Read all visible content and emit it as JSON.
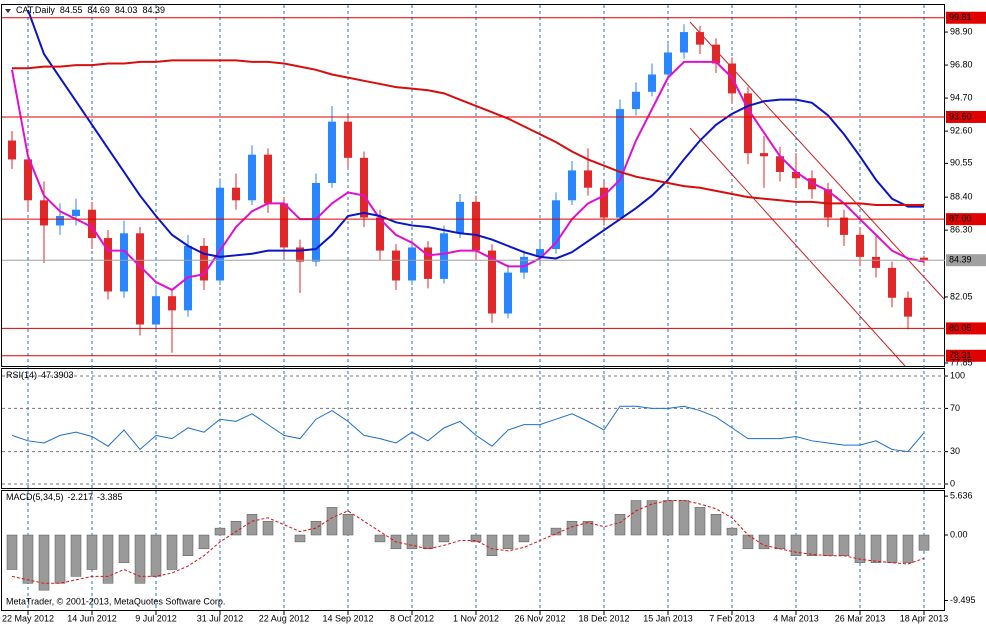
{
  "chart_data": [
    {
      "type": "candlestick",
      "title": "CAT,Daily",
      "categories": [
        null,
        "22 May 2012",
        null,
        null,
        null,
        "14 Jun 2012",
        null,
        null,
        null,
        "9 Jul 2012",
        null,
        null,
        null,
        "31 Jul 2012",
        null,
        null,
        null,
        "22 Aug 2012",
        null,
        null,
        null,
        "14 Sep 2012",
        null,
        null,
        null,
        "8 Oct 2012",
        null,
        null,
        null,
        "1 Nov 2012",
        null,
        null,
        null,
        "26 Nov 2012",
        null,
        null,
        null,
        "18 Dec 2012",
        null,
        null,
        null,
        "15 Jan 2013",
        null,
        null,
        null,
        "7 Feb 2013",
        null,
        null,
        null,
        "4 Mar 2013",
        null,
        null,
        null,
        "26 Mar 2013",
        null,
        null,
        null,
        "18 Apr 2013"
      ],
      "open": [
        92.0,
        90.8,
        88.2,
        86.6,
        87.2,
        87.6,
        85.8,
        82.4,
        86.1,
        80.3,
        82.1,
        81.2,
        85.3,
        83.1,
        89.0,
        88.2,
        91.1,
        88.0,
        85.2,
        84.3,
        89.3,
        93.2,
        90.9,
        87.1,
        85.0,
        83.1,
        85.2,
        83.2,
        86.1,
        88.1,
        85.0,
        81.0,
        83.6,
        84.6,
        85.1,
        88.2,
        90.1,
        89.0,
        87.1,
        94.0,
        95.1,
        96.2,
        97.6,
        98.9,
        98.1,
        96.9,
        95.0,
        91.2,
        91.0,
        90.0,
        89.6,
        88.9,
        87.1,
        86.0,
        84.6,
        83.9,
        82.0,
        84.55
      ],
      "high": [
        92.6,
        91.3,
        89.4,
        88.0,
        88.3,
        88.1,
        86.3,
        86.9,
        86.5,
        82.8,
        82.6,
        86.0,
        85.8,
        89.6,
        89.9,
        91.7,
        91.5,
        88.4,
        85.7,
        89.9,
        94.2,
        93.7,
        91.3,
        87.6,
        85.4,
        85.8,
        85.6,
        86.6,
        88.6,
        88.5,
        85.4,
        84.1,
        85.0,
        85.6,
        88.7,
        90.7,
        91.5,
        89.4,
        94.6,
        95.7,
        96.9,
        98.2,
        99.4,
        99.3,
        98.5,
        97.3,
        95.4,
        92.3,
        91.6,
        91.2,
        90.1,
        89.3,
        87.6,
        86.5,
        85.9,
        84.3,
        82.4,
        84.69
      ],
      "low": [
        90.2,
        87.5,
        84.2,
        86.0,
        86.6,
        85.1,
        81.9,
        82.0,
        79.6,
        79.9,
        78.5,
        80.8,
        82.5,
        82.8,
        87.6,
        87.9,
        87.4,
        84.6,
        82.3,
        84.0,
        89.0,
        90.3,
        86.5,
        84.4,
        82.5,
        82.8,
        82.6,
        82.9,
        85.8,
        84.4,
        80.4,
        80.7,
        83.2,
        84.2,
        84.8,
        87.9,
        88.5,
        86.6,
        86.9,
        93.6,
        94.8,
        95.9,
        97.2,
        97.5,
        96.3,
        94.4,
        90.5,
        89.0,
        89.4,
        89.0,
        88.3,
        86.5,
        85.3,
        84.0,
        83.3,
        81.4,
        80.0,
        84.03
      ],
      "close": [
        90.8,
        88.2,
        86.6,
        87.2,
        87.6,
        85.8,
        82.4,
        86.1,
        80.3,
        82.1,
        81.2,
        85.3,
        83.1,
        89.0,
        88.2,
        91.1,
        88.0,
        85.2,
        84.3,
        89.3,
        93.2,
        90.9,
        87.1,
        85.0,
        83.1,
        85.2,
        83.2,
        86.1,
        88.1,
        85.0,
        81.0,
        83.6,
        84.6,
        85.1,
        88.2,
        90.1,
        89.0,
        87.1,
        94.0,
        95.1,
        96.2,
        97.6,
        98.9,
        98.1,
        96.9,
        95.0,
        91.2,
        91.0,
        90.0,
        89.6,
        88.9,
        87.1,
        86.0,
        84.6,
        83.9,
        82.0,
        80.8,
        84.39
      ],
      "up_color": "#2a86ff",
      "down_color": "#e0282a",
      "lines": [
        {
          "color": "#e010d0",
          "values": [
            96.5,
            91,
            88.5,
            87.5,
            87,
            86.5,
            85,
            85,
            84,
            83,
            82.5,
            83.3,
            83.5,
            85,
            86.5,
            87.5,
            88,
            88,
            87,
            87,
            88,
            88.7,
            88.5,
            87,
            86,
            85.5,
            84.7,
            84.8,
            85,
            85,
            84.5,
            84,
            84,
            84.5,
            85.5,
            87,
            88,
            88.5,
            89.5,
            92,
            94,
            96,
            97,
            97,
            97,
            96,
            94,
            92.5,
            91,
            90,
            89.3,
            88.8,
            88,
            87,
            86,
            85,
            84.5,
            84.3
          ]
        },
        {
          "color": "#0a14c8",
          "values": [
            null,
            100.3,
            97.5,
            96,
            94.5,
            93,
            91.5,
            90,
            88.5,
            87.2,
            86,
            85.3,
            84.8,
            84.6,
            84.7,
            84.8,
            85,
            85,
            85,
            85.1,
            86,
            87.2,
            87.4,
            87.2,
            86.8,
            86.6,
            86.5,
            86.3,
            86.1,
            86,
            85.7,
            85.3,
            84.9,
            84.6,
            84.5,
            84.9,
            85.6,
            86.3,
            87,
            87.7,
            88.5,
            89.5,
            90.8,
            92,
            93,
            93.7,
            94.2,
            94.5,
            94.6,
            94.6,
            94.4,
            93.6,
            92.4,
            91,
            89.5,
            88.3,
            87.8,
            87.8
          ]
        },
        {
          "color": "#d80e0e",
          "values": [
            96.6,
            96.6,
            96.7,
            96.7,
            96.8,
            96.8,
            96.9,
            96.9,
            97,
            97,
            97.1,
            97.1,
            97.1,
            97.1,
            97.1,
            97,
            97,
            96.9,
            96.7,
            96.5,
            96.2,
            96.0,
            95.8,
            95.6,
            95.4,
            95.3,
            95.2,
            95.0,
            94.6,
            94.2,
            93.8,
            93.4,
            92.9,
            92.4,
            91.9,
            91.3,
            90.8,
            90.4,
            90.0,
            89.7,
            89.5,
            89.3,
            89.1,
            89.0,
            88.8,
            88.6,
            88.4,
            88.3,
            88.2,
            88.1,
            88.1,
            88.0,
            88.0,
            88.0,
            87.9,
            87.9,
            87.9,
            87.9
          ]
        }
      ],
      "levels": [
        99.81,
        {
          "value": 93.5,
          "label": "93.50"
        },
        {
          "value": 87,
          "label": "87.00"
        },
        80.05,
        78.31
      ],
      "level_color": "#e00000",
      "current_color": "#a0a0a0",
      "ylim": [
        77.66,
        100.43
      ],
      "yticks": [
        {
          "value": 98.9,
          "label": "98.90"
        },
        {
          "value": 96.8,
          "label": "96.80"
        },
        {
          "value": 94.7,
          "label": "94.70"
        },
        {
          "value": 92.6,
          "label": "92.60"
        },
        90.55,
        {
          "value": 88.4,
          "label": "88.40"
        },
        {
          "value": 86.3,
          "label": "86.30"
        },
        82.05,
        77.85
      ]
    },
    {
      "type": "line",
      "title": "RSI(14)",
      "values": [
        45,
        40,
        38,
        45,
        48,
        44,
        35,
        50,
        32,
        45,
        42,
        52,
        48,
        60,
        58,
        65,
        55,
        45,
        42,
        60,
        68,
        58,
        45,
        42,
        38,
        48,
        40,
        52,
        58,
        45,
        35,
        50,
        55,
        55,
        60,
        65,
        58,
        50,
        72,
        72,
        70,
        70,
        72,
        68,
        62,
        52,
        42,
        42,
        42,
        44,
        40,
        38,
        36,
        36,
        40,
        32,
        30,
        47.3903
      ],
      "color": "#1e6fd0",
      "ylim": [
        -3.7,
        106.5
      ],
      "yticks": [
        100,
        70,
        30,
        0
      ],
      "grid": true
    },
    {
      "type": "macd",
      "title": "MACD(5,34,5)",
      "values": [
        -5,
        -7,
        -8,
        -7,
        -6,
        -5,
        -7,
        -4,
        -7,
        -6,
        -5,
        -3,
        -2,
        1,
        2,
        3,
        2,
        0,
        -1,
        2,
        4,
        3,
        0,
        -1,
        -2,
        -2,
        -2,
        -1,
        0,
        -1,
        -3,
        -2,
        -1,
        0,
        1,
        2,
        2,
        0,
        3,
        5,
        5,
        5,
        5,
        4,
        3,
        1,
        -2,
        -2,
        -2,
        -3,
        -3,
        -3,
        -3,
        -4,
        -4,
        -4,
        -4,
        -2.217
      ],
      "signal": [
        -6,
        -6.5,
        -7,
        -7,
        -6.5,
        -6,
        -6,
        -5,
        -6,
        -6,
        -5.5,
        -4.5,
        -3,
        -1,
        0.5,
        2,
        2.5,
        1.5,
        0.5,
        1,
        2.5,
        3.5,
        2,
        0.5,
        -1,
        -1.5,
        -2,
        -1.5,
        -0.8,
        -0.8,
        -2,
        -2.3,
        -1.8,
        -0.8,
        0.2,
        1.2,
        1.8,
        1.2,
        1.8,
        3.5,
        4.5,
        5,
        5,
        4.5,
        3.8,
        2.5,
        0,
        -1.5,
        -2,
        -2.5,
        -2.8,
        -3,
        -3,
        -3.5,
        -3.8,
        -4,
        -4.2,
        -3.385
      ],
      "color": "#9a9a9a",
      "signal_color": "#e01010",
      "ylim": [
        -10.87,
        6.38
      ],
      "yticks": [
        5.636,
        {
          "value": 0,
          "label": "0.00"
        },
        -9.495
      ]
    }
  ],
  "copyright": "MetaTrader, © 2001-2013, MetaQuotes Software Corp."
}
